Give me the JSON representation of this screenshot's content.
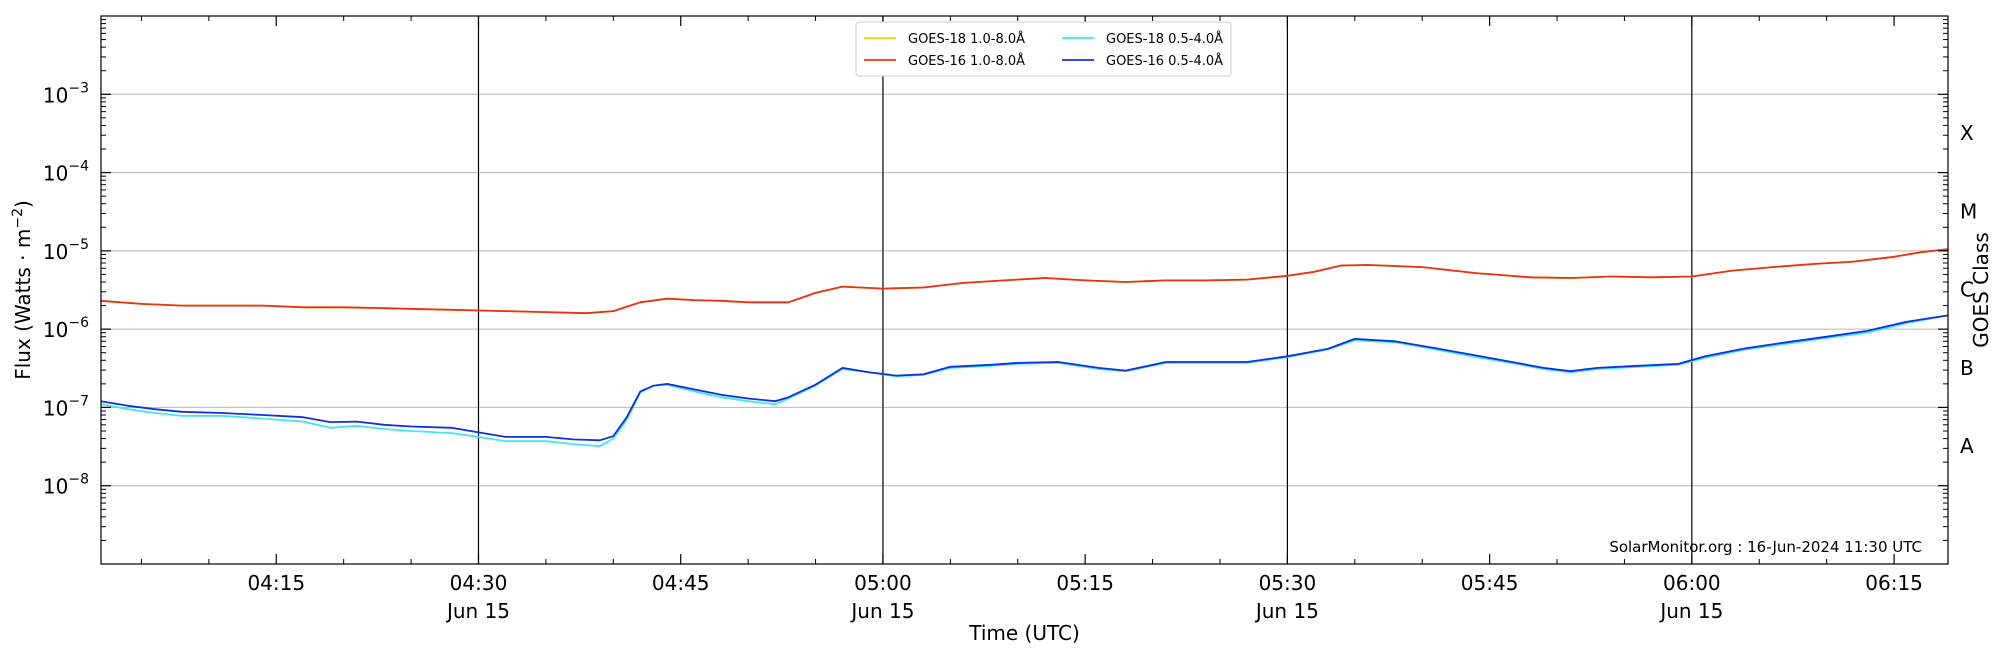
{
  "chart_data": {
    "type": "line",
    "xlabel": "Time (UTC)",
    "ylabel": "Flux (Watts · m⁻²)",
    "y_scale": "log",
    "ylim": [
      1e-09,
      0.01
    ],
    "xlim": [
      "2024-06-15T04:02",
      "2024-06-15T06:19"
    ],
    "grid": "horizontal at each decade",
    "legend_placement": "top-center",
    "x_ticks": [
      {
        "t": "04:15",
        "label": "04:15",
        "date": ""
      },
      {
        "t": "04:30",
        "label": "04:30",
        "date": "Jun 15"
      },
      {
        "t": "04:45",
        "label": "04:45",
        "date": ""
      },
      {
        "t": "05:00",
        "label": "05:00",
        "date": "Jun 15"
      },
      {
        "t": "05:15",
        "label": "05:15",
        "date": ""
      },
      {
        "t": "05:30",
        "label": "05:30",
        "date": "Jun 15"
      },
      {
        "t": "05:45",
        "label": "05:45",
        "date": ""
      },
      {
        "t": "06:00",
        "label": "06:00",
        "date": "Jun 15"
      },
      {
        "t": "06:15",
        "label": "06:15",
        "date": ""
      }
    ],
    "y_ticks": [
      {
        "exp": -3,
        "label": "10",
        "sup": "−3"
      },
      {
        "exp": -4,
        "label": "10",
        "sup": "−4"
      },
      {
        "exp": -5,
        "label": "10",
        "sup": "−5"
      },
      {
        "exp": -6,
        "label": "10",
        "sup": "−6"
      },
      {
        "exp": -7,
        "label": "10",
        "sup": "−7"
      },
      {
        "exp": -8,
        "label": "10",
        "sup": "−8"
      }
    ],
    "vertical_markers": [
      "04:30",
      "05:00",
      "05:30",
      "06:00"
    ],
    "goes_class_axis": {
      "label": "GOES Class",
      "classes": [
        {
          "name": "X",
          "flux": 0.00032
        },
        {
          "name": "M",
          "flux": 3.2e-05
        },
        {
          "name": "C",
          "flux": 3.2e-06
        },
        {
          "name": "B",
          "flux": 3.2e-07
        },
        {
          "name": "A",
          "flux": 3.2e-08
        }
      ]
    },
    "legend": [
      {
        "name": "GOES-18 1.0-8.0Å",
        "color": "#ffd700"
      },
      {
        "name": "GOES-16 1.0-8.0Å",
        "color": "#e8301a"
      },
      {
        "name": "GOES-18 0.5-4.0Å",
        "color": "#3ee8f0"
      },
      {
        "name": "GOES-16 0.5-4.0Å",
        "color": "#1030e0"
      }
    ],
    "series": [
      {
        "name": "GOES-18 1.0-8.0Å",
        "color": "#ffd700",
        "x": [
          "04:02",
          "04:05",
          "04:08",
          "04:11",
          "04:14",
          "04:17",
          "04:20",
          "04:23",
          "04:26",
          "04:29",
          "04:32",
          "04:35",
          "04:38",
          "04:40",
          "04:42",
          "04:44",
          "04:46",
          "04:48",
          "04:50",
          "04:53",
          "04:55",
          "04:57",
          "05:00",
          "05:03",
          "05:06",
          "05:09",
          "05:12",
          "05:15",
          "05:18",
          "05:21",
          "05:24",
          "05:27",
          "05:30",
          "05:32",
          "05:34",
          "05:36",
          "05:40",
          "05:44",
          "05:48",
          "05:51",
          "05:54",
          "05:57",
          "06:00",
          "06:03",
          "06:06",
          "06:09",
          "06:12",
          "06:15",
          "06:17",
          "06:19"
        ],
        "values": [
          2.3e-06,
          2.1e-06,
          2e-06,
          2e-06,
          2e-06,
          1.9e-06,
          1.9e-06,
          1.85e-06,
          1.8e-06,
          1.75e-06,
          1.7e-06,
          1.65e-06,
          1.6e-06,
          1.7e-06,
          2.2e-06,
          2.45e-06,
          2.35e-06,
          2.3e-06,
          2.2e-06,
          2.2e-06,
          2.9e-06,
          3.5e-06,
          3.3e-06,
          3.4e-06,
          3.9e-06,
          4.2e-06,
          4.5e-06,
          4.2e-06,
          4e-06,
          4.2e-06,
          4.2e-06,
          4.3e-06,
          4.8e-06,
          5.4e-06,
          6.5e-06,
          6.6e-06,
          6.2e-06,
          5.2e-06,
          4.6e-06,
          4.5e-06,
          4.7e-06,
          4.6e-06,
          4.7e-06,
          5.6e-06,
          6.2e-06,
          6.8e-06,
          7.3e-06,
          8.4e-06,
          9.6e-06,
          1.05e-05
        ]
      },
      {
        "name": "GOES-16 1.0-8.0Å",
        "color": "#e8301a",
        "x": [
          "04:02",
          "04:05",
          "04:08",
          "04:11",
          "04:14",
          "04:17",
          "04:20",
          "04:23",
          "04:26",
          "04:29",
          "04:32",
          "04:35",
          "04:38",
          "04:40",
          "04:42",
          "04:44",
          "04:46",
          "04:48",
          "04:50",
          "04:53",
          "04:55",
          "04:57",
          "05:00",
          "05:03",
          "05:06",
          "05:09",
          "05:12",
          "05:15",
          "05:18",
          "05:21",
          "05:24",
          "05:27",
          "05:30",
          "05:32",
          "05:34",
          "05:36",
          "05:40",
          "05:44",
          "05:48",
          "05:51",
          "05:54",
          "05:57",
          "06:00",
          "06:03",
          "06:06",
          "06:09",
          "06:12",
          "06:15",
          "06:17",
          "06:19"
        ],
        "values": [
          2.3e-06,
          2.1e-06,
          2e-06,
          2e-06,
          2e-06,
          1.9e-06,
          1.9e-06,
          1.85e-06,
          1.8e-06,
          1.75e-06,
          1.7e-06,
          1.65e-06,
          1.6e-06,
          1.7e-06,
          2.2e-06,
          2.45e-06,
          2.35e-06,
          2.3e-06,
          2.2e-06,
          2.2e-06,
          2.9e-06,
          3.5e-06,
          3.3e-06,
          3.4e-06,
          3.9e-06,
          4.2e-06,
          4.5e-06,
          4.2e-06,
          4e-06,
          4.2e-06,
          4.2e-06,
          4.3e-06,
          4.8e-06,
          5.4e-06,
          6.5e-06,
          6.6e-06,
          6.2e-06,
          5.2e-06,
          4.6e-06,
          4.5e-06,
          4.7e-06,
          4.6e-06,
          4.7e-06,
          5.6e-06,
          6.2e-06,
          6.8e-06,
          7.3e-06,
          8.4e-06,
          9.6e-06,
          1.05e-05
        ]
      },
      {
        "name": "GOES-18 0.5-4.0Å",
        "color": "#3ee8f0",
        "x": [
          "04:02",
          "04:04",
          "04:06",
          "04:08",
          "04:11",
          "04:14",
          "04:17",
          "04:19",
          "04:21",
          "04:23",
          "04:25",
          "04:28",
          "04:30",
          "04:32",
          "04:35",
          "04:37",
          "04:39",
          "04:40",
          "04:41",
          "04:42",
          "04:43",
          "04:44",
          "04:46",
          "04:48",
          "04:50",
          "04:52",
          "04:53",
          "04:55",
          "04:57",
          "04:59",
          "05:01",
          "05:03",
          "05:05",
          "05:08",
          "05:10",
          "05:13",
          "05:16",
          "05:18",
          "05:21",
          "05:24",
          "05:27",
          "05:30",
          "05:33",
          "05:35",
          "05:38",
          "05:41",
          "05:44",
          "05:47",
          "05:49",
          "05:51",
          "05:53",
          "05:56",
          "05:59",
          "06:01",
          "06:04",
          "06:07",
          "06:10",
          "06:13",
          "06:16",
          "06:19"
        ],
        "values": [
          1.1e-07,
          9.5e-08,
          8.5e-08,
          7.8e-08,
          7.8e-08,
          7.2e-08,
          6.6e-08,
          5.5e-08,
          5.8e-08,
          5.3e-08,
          5e-08,
          4.7e-08,
          4.2e-08,
          3.7e-08,
          3.7e-08,
          3.4e-08,
          3.2e-08,
          4e-08,
          7e-08,
          1.55e-07,
          1.9e-07,
          1.95e-07,
          1.6e-07,
          1.35e-07,
          1.2e-07,
          1.1e-07,
          1.3e-07,
          1.9e-07,
          3.1e-07,
          2.8e-07,
          2.5e-07,
          2.6e-07,
          3.2e-07,
          3.4e-07,
          3.6e-07,
          3.7e-07,
          3.1e-07,
          2.9e-07,
          3.7e-07,
          3.7e-07,
          3.7e-07,
          4.4e-07,
          5.5e-07,
          7.2e-07,
          6.8e-07,
          5.5e-07,
          4.4e-07,
          3.6e-07,
          3.1e-07,
          2.8e-07,
          3.1e-07,
          3.3e-07,
          3.5e-07,
          4.3e-07,
          5.5e-07,
          6.5e-07,
          7.7e-07,
          9e-07,
          1.2e-06,
          1.5e-06
        ]
      },
      {
        "name": "GOES-16 0.5-4.0Å",
        "color": "#1030e0",
        "x": [
          "04:02",
          "04:04",
          "04:06",
          "04:08",
          "04:11",
          "04:14",
          "04:17",
          "04:19",
          "04:21",
          "04:23",
          "04:25",
          "04:28",
          "04:30",
          "04:32",
          "04:35",
          "04:37",
          "04:39",
          "04:40",
          "04:41",
          "04:42",
          "04:43",
          "04:44",
          "04:46",
          "04:48",
          "04:50",
          "04:52",
          "04:53",
          "04:55",
          "04:57",
          "04:59",
          "05:01",
          "05:03",
          "05:05",
          "05:08",
          "05:10",
          "05:13",
          "05:16",
          "05:18",
          "05:21",
          "05:24",
          "05:27",
          "05:30",
          "05:33",
          "05:35",
          "05:38",
          "05:41",
          "05:44",
          "05:47",
          "05:49",
          "05:51",
          "05:53",
          "05:56",
          "05:59",
          "06:01",
          "06:04",
          "06:07",
          "06:10",
          "06:13",
          "06:16",
          "06:19"
        ],
        "values": [
          1.2e-07,
          1.05e-07,
          9.5e-08,
          8.8e-08,
          8.5e-08,
          8e-08,
          7.5e-08,
          6.5e-08,
          6.6e-08,
          6e-08,
          5.7e-08,
          5.5e-08,
          4.8e-08,
          4.2e-08,
          4.2e-08,
          3.9e-08,
          3.8e-08,
          4.3e-08,
          7.5e-08,
          1.6e-07,
          1.9e-07,
          2e-07,
          1.7e-07,
          1.45e-07,
          1.3e-07,
          1.2e-07,
          1.35e-07,
          1.95e-07,
          3.2e-07,
          2.8e-07,
          2.55e-07,
          2.65e-07,
          3.3e-07,
          3.5e-07,
          3.7e-07,
          3.8e-07,
          3.2e-07,
          2.95e-07,
          3.8e-07,
          3.8e-07,
          3.8e-07,
          4.5e-07,
          5.6e-07,
          7.5e-07,
          7e-07,
          5.7e-07,
          4.6e-07,
          3.7e-07,
          3.2e-07,
          2.9e-07,
          3.2e-07,
          3.4e-07,
          3.6e-07,
          4.5e-07,
          5.7e-07,
          6.8e-07,
          8e-07,
          9.5e-07,
          1.25e-06,
          1.5e-06
        ]
      }
    ],
    "annotation": "SolarMonitor.org : 16-Jun-2024 11:30 UTC"
  }
}
